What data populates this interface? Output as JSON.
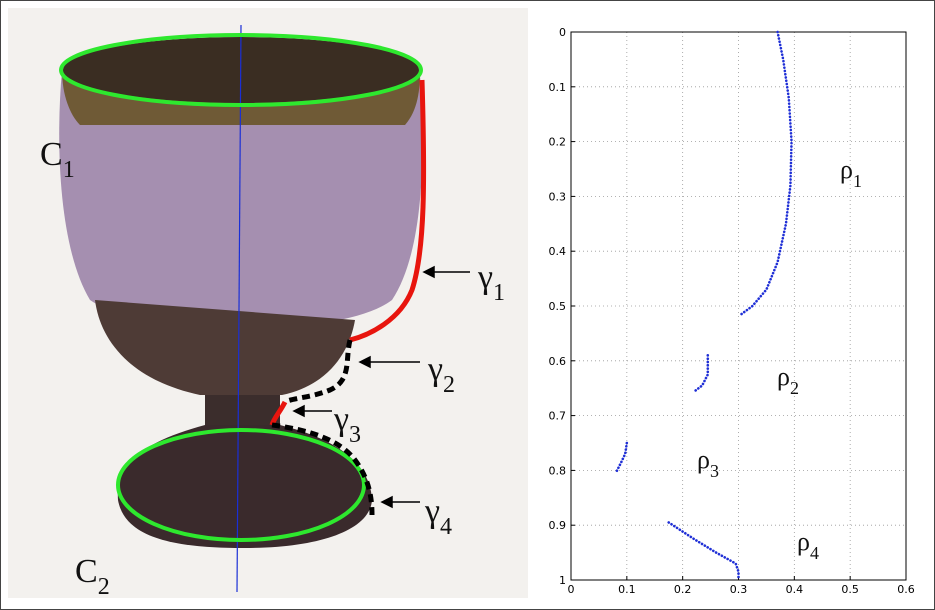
{
  "photo": {
    "labels": [
      {
        "main": "C",
        "sub": "1"
      },
      {
        "main": "C",
        "sub": "2"
      },
      {
        "main": "γ",
        "sub": "1"
      },
      {
        "main": "γ",
        "sub": "2"
      },
      {
        "main": "γ",
        "sub": "3"
      },
      {
        "main": "γ",
        "sub": "4"
      }
    ]
  },
  "chart_data": {
    "type": "line",
    "grid": true,
    "y_reversed": true,
    "xlim": [
      0,
      0.6
    ],
    "xticks": [
      0,
      0.1,
      0.2,
      0.3,
      0.4,
      0.5,
      0.6
    ],
    "ylim": [
      0,
      1
    ],
    "yticks": [
      0,
      0.1,
      0.2,
      0.3,
      0.4,
      0.5,
      0.6,
      0.7,
      0.8,
      0.9,
      1
    ],
    "series": [
      {
        "color": "#1f2fd6",
        "x": [
          0.37,
          0.38,
          0.39,
          0.395,
          0.393,
          0.385,
          0.37,
          0.35,
          0.325,
          0.305
        ],
        "y": [
          0,
          0.05,
          0.12,
          0.2,
          0.28,
          0.35,
          0.42,
          0.47,
          0.5,
          0.515
        ]
      },
      {
        "color": "#1f2fd6",
        "x": [
          0.245,
          0.245,
          0.235,
          0.222
        ],
        "y": [
          0.59,
          0.625,
          0.645,
          0.655
        ]
      },
      {
        "color": "#1f2fd6",
        "x": [
          0.1,
          0.097,
          0.09,
          0.08
        ],
        "y": [
          0.75,
          0.77,
          0.785,
          0.805
        ]
      },
      {
        "color": "#1f2fd6",
        "x": [
          0.175,
          0.22,
          0.26,
          0.295,
          0.3,
          0.3
        ],
        "y": [
          0.895,
          0.925,
          0.95,
          0.97,
          0.985,
          1
        ]
      }
    ],
    "annotations": [
      {
        "main": "ρ",
        "sub": "1"
      },
      {
        "main": "ρ",
        "sub": "2"
      },
      {
        "main": "ρ",
        "sub": "3"
      },
      {
        "main": "ρ",
        "sub": "4"
      }
    ]
  }
}
